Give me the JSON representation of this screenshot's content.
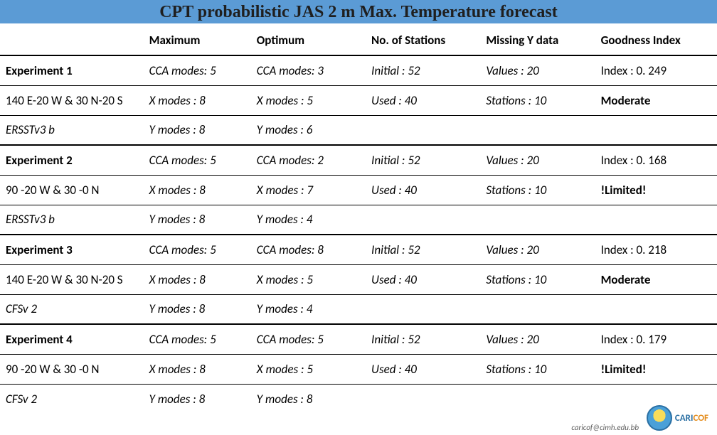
{
  "title": "CPT probabilistic JAS 2 m Max. Temperature forecast",
  "columns": [
    "",
    "Maximum",
    "Optimum",
    "No. of Stations",
    "Missing Y data",
    "Goodness Index"
  ],
  "rows": [
    {
      "border": "thin",
      "cells": [
        {
          "text": "Experiment 1",
          "style": "bold"
        },
        {
          "text": "CCA modes: 5",
          "style": "italic"
        },
        {
          "text": "CCA modes: 3",
          "style": "italic"
        },
        {
          "text": "Initial : 52",
          "style": "italic"
        },
        {
          "text": "Values : 20",
          "style": "italic"
        },
        {
          "text": "Index : 0. 249",
          "style": ""
        }
      ]
    },
    {
      "border": "thin",
      "cells": [
        {
          "text": "140 E-20 W & 30 N-20 S",
          "style": ""
        },
        {
          "text": "X modes : 8",
          "style": "italic"
        },
        {
          "text": "X modes : 5",
          "style": "italic"
        },
        {
          "text": "Used : 40",
          "style": "italic"
        },
        {
          "text": "Stations : 10",
          "style": "italic"
        },
        {
          "text": "Moderate",
          "style": "bold"
        }
      ]
    },
    {
      "border": "thick",
      "cells": [
        {
          "text": "ERSSTv3 b",
          "style": "italic"
        },
        {
          "text": "Y modes : 8",
          "style": "italic"
        },
        {
          "text": "Y modes : 6",
          "style": "italic"
        },
        {
          "text": "",
          "style": ""
        },
        {
          "text": "",
          "style": ""
        },
        {
          "text": "",
          "style": ""
        }
      ]
    },
    {
      "border": "thin",
      "cells": [
        {
          "text": "Experiment 2",
          "style": "bold"
        },
        {
          "text": "CCA modes: 5",
          "style": "italic"
        },
        {
          "text": "CCA modes: 2",
          "style": "italic"
        },
        {
          "text": "Initial : 52",
          "style": "italic"
        },
        {
          "text": "Values : 20",
          "style": "italic"
        },
        {
          "text": "Index : 0. 168",
          "style": ""
        }
      ]
    },
    {
      "border": "thin",
      "cells": [
        {
          "text": "90 -20 W & 30 -0 N",
          "style": ""
        },
        {
          "text": "X modes : 8",
          "style": "italic"
        },
        {
          "text": "X modes : 7",
          "style": "italic"
        },
        {
          "text": "Used : 40",
          "style": "italic"
        },
        {
          "text": "Stations : 10",
          "style": "italic"
        },
        {
          "text": "!Limited!",
          "style": "bold"
        }
      ]
    },
    {
      "border": "thick",
      "cells": [
        {
          "text": "ERSSTv3 b",
          "style": "italic"
        },
        {
          "text": "Y modes : 8",
          "style": "italic"
        },
        {
          "text": "Y modes : 4",
          "style": "italic"
        },
        {
          "text": "",
          "style": ""
        },
        {
          "text": "",
          "style": ""
        },
        {
          "text": "",
          "style": ""
        }
      ]
    },
    {
      "border": "thin",
      "cells": [
        {
          "text": "Experiment 3",
          "style": "bold"
        },
        {
          "text": "CCA modes: 5",
          "style": "italic"
        },
        {
          "text": "CCA modes: 8",
          "style": "italic"
        },
        {
          "text": "Initial : 52",
          "style": "italic"
        },
        {
          "text": "Values : 20",
          "style": "italic"
        },
        {
          "text": "Index : 0. 218",
          "style": ""
        }
      ]
    },
    {
      "border": "thin",
      "cells": [
        {
          "text": "140 E-20 W & 30 N-20 S",
          "style": ""
        },
        {
          "text": "X modes : 8",
          "style": "italic"
        },
        {
          "text": "X modes : 5",
          "style": "italic"
        },
        {
          "text": "Used : 40",
          "style": "italic"
        },
        {
          "text": "Stations : 10",
          "style": "italic"
        },
        {
          "text": "Moderate",
          "style": "bold"
        }
      ]
    },
    {
      "border": "thick",
      "cells": [
        {
          "text": "CFSv 2",
          "style": "italic"
        },
        {
          "text": "Y modes : 8",
          "style": "italic"
        },
        {
          "text": "Y modes : 4",
          "style": "italic"
        },
        {
          "text": "",
          "style": ""
        },
        {
          "text": "",
          "style": ""
        },
        {
          "text": "",
          "style": ""
        }
      ]
    },
    {
      "border": "thin",
      "cells": [
        {
          "text": "Experiment 4",
          "style": "bold"
        },
        {
          "text": "CCA modes: 5",
          "style": "italic"
        },
        {
          "text": "CCA modes: 5",
          "style": "italic"
        },
        {
          "text": "Initial : 52",
          "style": "italic"
        },
        {
          "text": "Values : 20",
          "style": "italic"
        },
        {
          "text": "Index : 0. 179",
          "style": ""
        }
      ]
    },
    {
      "border": "thin",
      "cells": [
        {
          "text": "90 -20 W & 30 -0 N",
          "style": ""
        },
        {
          "text": "X modes : 8",
          "style": "italic"
        },
        {
          "text": "X modes : 5",
          "style": "italic"
        },
        {
          "text": "Used : 40",
          "style": "italic"
        },
        {
          "text": "Stations : 10",
          "style": "italic"
        },
        {
          "text": "!Limited!",
          "style": "bold"
        }
      ]
    },
    {
      "border": "none",
      "cells": [
        {
          "text": "CFSv 2",
          "style": "italic"
        },
        {
          "text": "Y modes : 8",
          "style": "italic"
        },
        {
          "text": "Y modes : 8",
          "style": "italic"
        },
        {
          "text": "",
          "style": ""
        },
        {
          "text": "",
          "style": ""
        },
        {
          "text": "",
          "style": ""
        }
      ]
    }
  ],
  "footer_email": "caricof@cimh.edu.bb",
  "logo_brand_a": "CARI",
  "logo_brand_b": "COF",
  "colors": {
    "title_bg": "#5b9bd5",
    "border": "#000000"
  }
}
